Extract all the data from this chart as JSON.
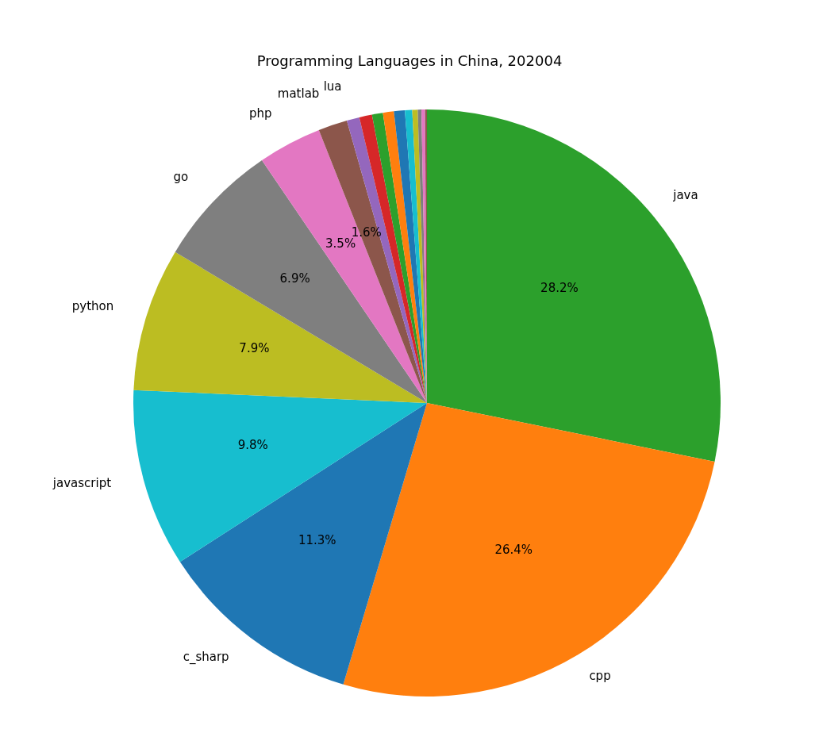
{
  "chart_data": {
    "type": "pie",
    "title": "Programming Languages in China, 202004",
    "categories": [
      "java",
      "cpp",
      "c_sharp",
      "javascript",
      "python",
      "go",
      "php",
      "matlab",
      "lua",
      null,
      null,
      null,
      null,
      null,
      null,
      null,
      null,
      null
    ],
    "values": [
      28.2,
      26.4,
      11.3,
      9.8,
      7.9,
      6.9,
      3.5,
      1.6,
      0.7,
      0.7,
      0.6,
      0.6,
      0.6,
      0.4,
      0.3,
      0.2,
      0.2,
      0.1
    ],
    "colors": [
      "#2ca02c",
      "#ff7f0e",
      "#1f77b4",
      "#17becf",
      "#bcbd22",
      "#7f7f7f",
      "#e377c2",
      "#8c564b",
      "#9467bd",
      "#d62728",
      "#2ca02c",
      "#ff7f0e",
      "#1f77b4",
      "#17becf",
      "#bcbd22",
      "#7f7f7f",
      "#e377c2",
      "#8c564b"
    ],
    "value_labels": [
      "28.2%",
      "26.4%",
      "11.3%",
      "9.8%",
      "7.9%",
      "6.9%",
      "3.5%",
      "1.6%",
      null,
      null,
      null,
      null,
      null,
      null,
      null,
      null,
      null,
      null
    ],
    "legend": false
  }
}
